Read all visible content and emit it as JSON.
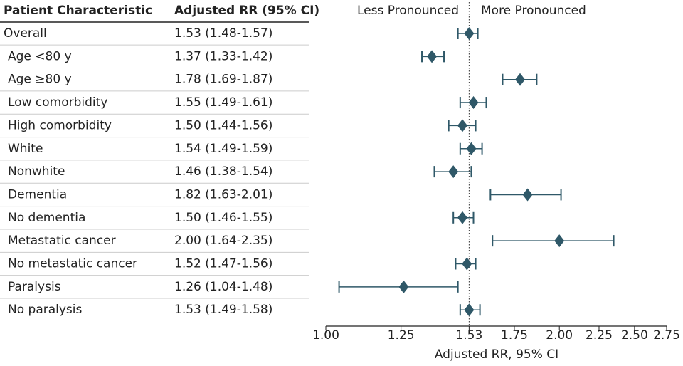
{
  "chart_data": {
    "type": "forest",
    "columns": [
      "Patient Characteristic",
      "Adjusted RR (95% CI)"
    ],
    "categories": [
      "Overall",
      "Age <80 y",
      "Age ≥80 y",
      "Low comorbidity",
      "High comorbidity",
      "White",
      "Nonwhite",
      "Dementia",
      "No dementia",
      "Metastatic cancer",
      "No metastatic cancer",
      "Paralysis",
      "No paralysis"
    ],
    "values": [
      1.53,
      1.37,
      1.78,
      1.55,
      1.5,
      1.54,
      1.46,
      1.82,
      1.5,
      2.0,
      1.52,
      1.26,
      1.53
    ],
    "lower": [
      1.48,
      1.33,
      1.69,
      1.49,
      1.44,
      1.49,
      1.38,
      1.63,
      1.46,
      1.64,
      1.47,
      1.04,
      1.49
    ],
    "upper": [
      1.57,
      1.42,
      1.87,
      1.61,
      1.56,
      1.59,
      1.54,
      2.01,
      1.55,
      2.35,
      1.56,
      1.48,
      1.58
    ],
    "value_labels": [
      "1.53 (1.48-1.57)",
      "1.37 (1.33-1.42)",
      "1.78 (1.69-1.87)",
      "1.55 (1.49-1.61)",
      "1.50 (1.44-1.56)",
      "1.54 (1.49-1.59)",
      "1.46 (1.38-1.54)",
      "1.82 (1.63-2.01)",
      "1.50 (1.46-1.55)",
      "2.00 (1.64-2.35)",
      "1.52 (1.47-1.56)",
      "1.26 (1.04-1.48)",
      "1.53 (1.49-1.58)"
    ],
    "color": "#2f5868",
    "reference_line": 1.53,
    "annotations": [
      "Less Pronounced",
      "More Pronounced"
    ],
    "xlabel": "Adjusted RR, 95% CI",
    "log_scale": true,
    "xlim": [
      1,
      2.75
    ],
    "xticks": [
      {
        "value": 1,
        "label": "1.00"
      },
      1.25,
      1.53,
      1.75,
      {
        "value": 2,
        "label": "2.00"
      },
      2.25,
      {
        "value": 2.5,
        "label": "2.50"
      },
      2.75
    ]
  }
}
